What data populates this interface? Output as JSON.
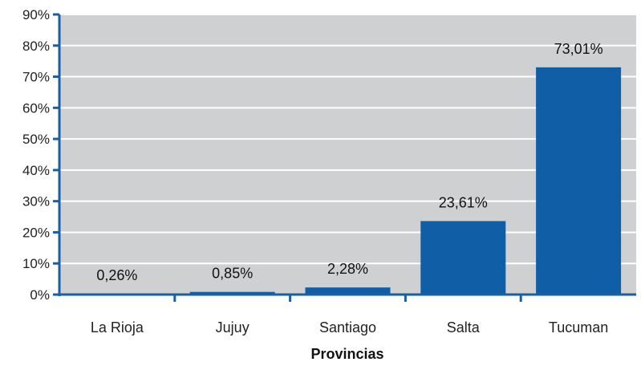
{
  "chart_data": {
    "type": "bar",
    "categories": [
      "La Rioja",
      "Jujuy",
      "Santiago",
      "Salta",
      "Tucuman"
    ],
    "values": [
      0.26,
      0.85,
      2.28,
      23.61,
      73.01
    ],
    "data_labels": [
      "0,26%",
      "0,85%",
      "2,28%",
      "23,61%",
      "73,01%"
    ],
    "title": "",
    "xlabel": "Provincias",
    "ylabel": "",
    "ylim": [
      0,
      90
    ],
    "yticks": [
      0,
      10,
      20,
      30,
      40,
      50,
      60,
      70,
      80,
      90
    ],
    "ytick_labels": [
      "0%",
      "10%",
      "20%",
      "30%",
      "40%",
      "50%",
      "60%",
      "70%",
      "80%",
      "90%"
    ],
    "grid": true,
    "legend": "none",
    "colors": {
      "bar": "#0f5ea6",
      "plot_background": "#cfd0d2",
      "gridline": "#ffffff",
      "axis": "#1a5fa6"
    }
  }
}
